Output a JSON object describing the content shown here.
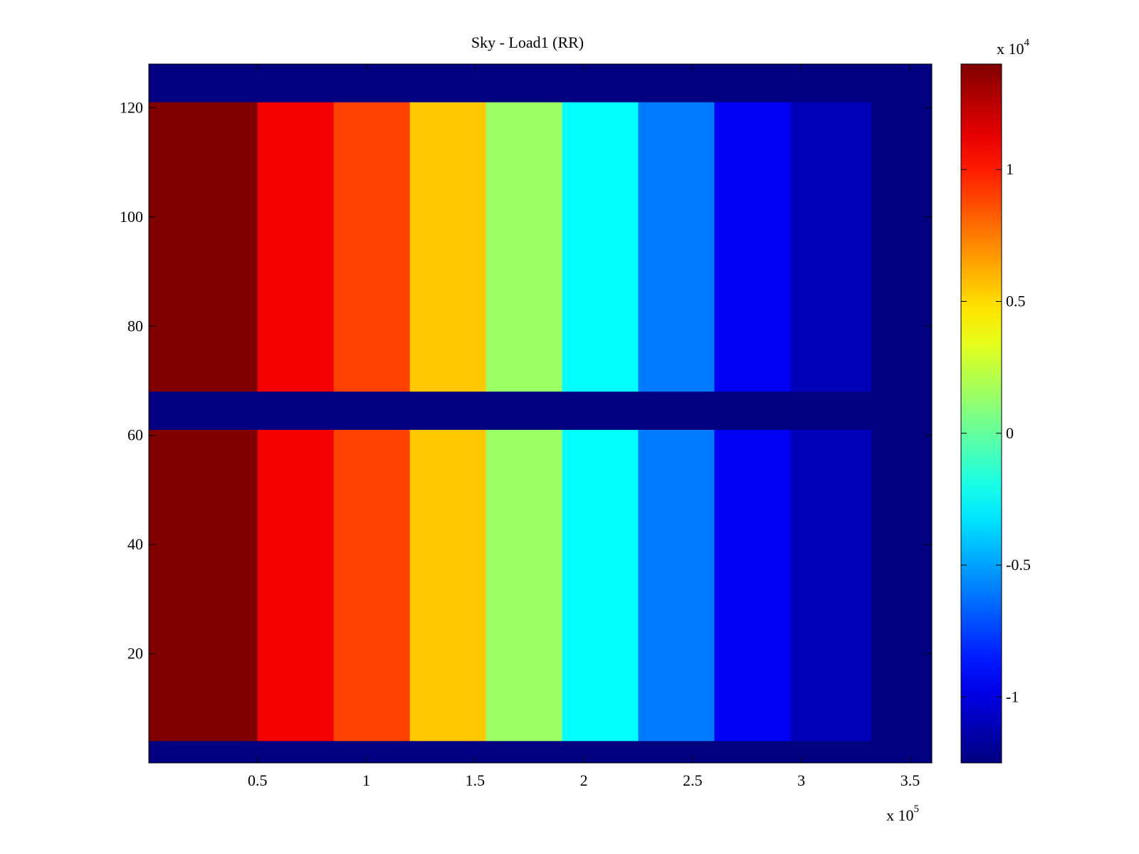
{
  "chart_data": {
    "type": "heatmap",
    "title": "Sky - Load1 (RR)",
    "xlabel": "",
    "ylabel": "",
    "colormap": "jet",
    "xlim": [
      0,
      360000
    ],
    "ylim": [
      0,
      128
    ],
    "x_scale_label": "x 10",
    "x_scale_exponent": "5",
    "x_ticks": [
      50000,
      100000,
      150000,
      200000,
      250000,
      300000,
      350000
    ],
    "x_tick_labels": [
      "0.5",
      "1",
      "1.5",
      "2",
      "2.5",
      "3",
      "3.5"
    ],
    "y_ticks": [
      20,
      40,
      60,
      80,
      100,
      120
    ],
    "y_tick_labels": [
      "20",
      "40",
      "60",
      "80",
      "100",
      "120"
    ],
    "data_x_end": 332000,
    "data_rows": [
      [
        4,
        61
      ],
      [
        68,
        121
      ]
    ],
    "gap_rows": [
      [
        61,
        68
      ]
    ],
    "column_bins": [
      {
        "x0": 0,
        "x1": 50000,
        "value": 14000
      },
      {
        "x0": 50000,
        "x1": 85000,
        "value": 11000
      },
      {
        "x0": 85000,
        "x1": 120000,
        "value": 9000
      },
      {
        "x0": 120000,
        "x1": 155000,
        "value": 5500
      },
      {
        "x0": 155000,
        "x1": 190000,
        "value": 1500
      },
      {
        "x0": 190000,
        "x1": 225000,
        "value": -2500
      },
      {
        "x0": 225000,
        "x1": 260000,
        "value": -6000
      },
      {
        "x0": 260000,
        "x1": 295000,
        "value": -9500
      },
      {
        "x0": 295000,
        "x1": 332000,
        "value": -11000
      }
    ],
    "colorbar": {
      "min": -12500,
      "max": 14000,
      "scale_label": "x 10",
      "scale_exponent": "4",
      "ticks": [
        -10000,
        -5000,
        0,
        5000,
        10000
      ],
      "tick_labels": [
        "-1",
        "-0.5",
        "0",
        "0.5",
        "1"
      ]
    }
  }
}
